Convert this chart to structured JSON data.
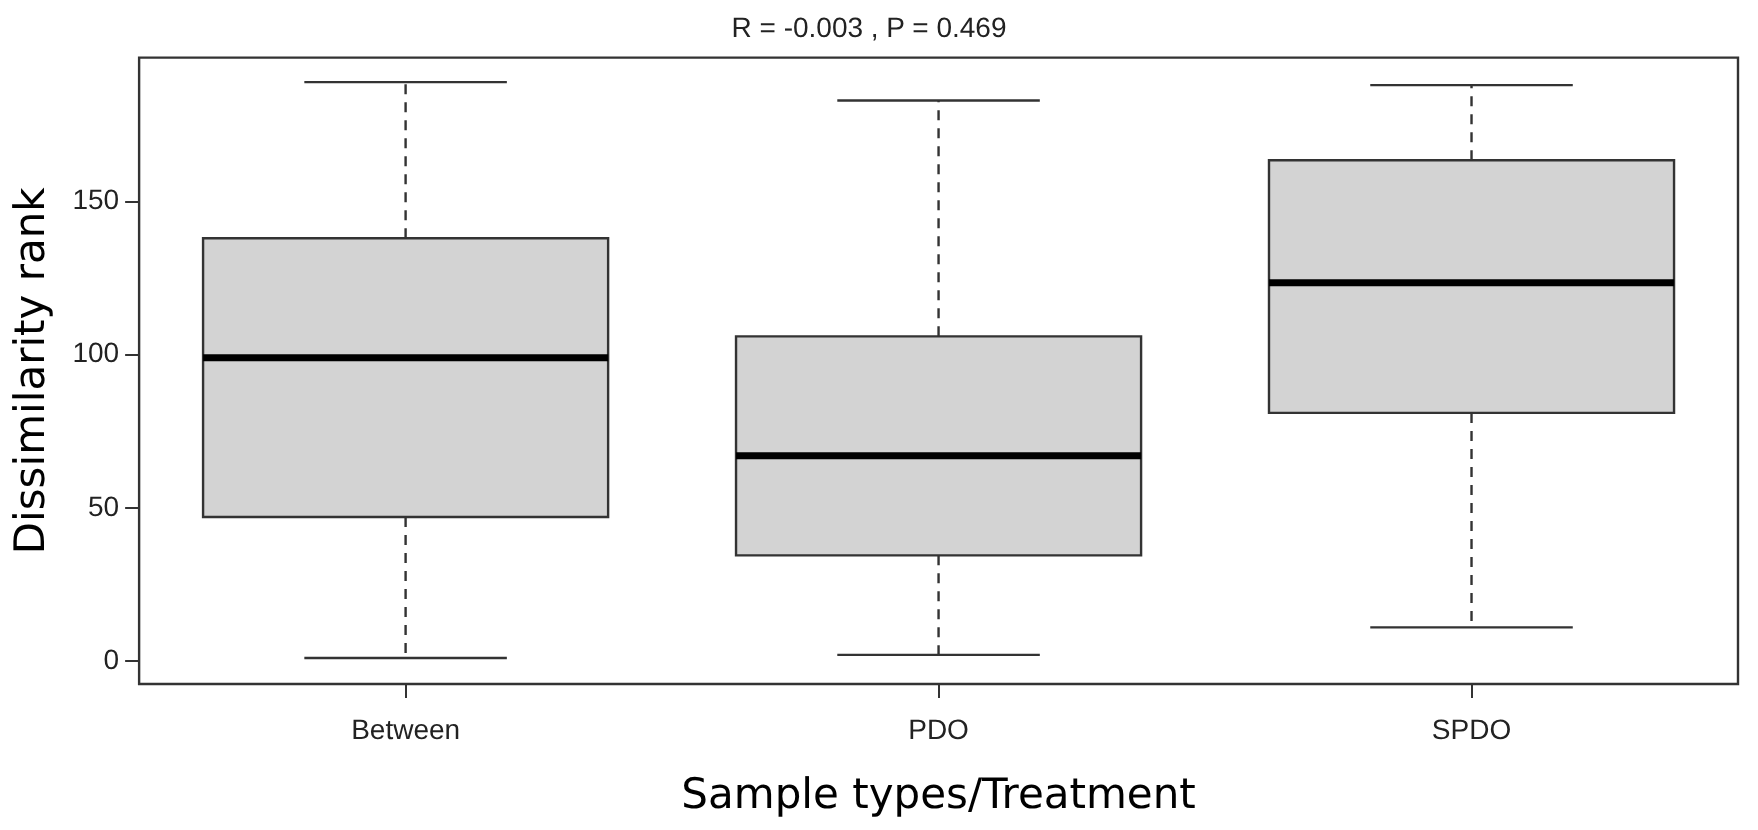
{
  "chart_data": {
    "type": "box",
    "title": "R = -0.003 , P = 0.469",
    "xlabel": "Sample types/Treatment",
    "ylabel": "Dissimilarity rank",
    "categories": [
      "Between",
      "PDO",
      "SPDO"
    ],
    "boxes": [
      {
        "low": 1,
        "q1": 47,
        "median": 99,
        "q3": 138,
        "high": 189
      },
      {
        "low": 2,
        "q1": 34.5,
        "median": 67,
        "q3": 106,
        "high": 183
      },
      {
        "low": 11,
        "q1": 81,
        "median": 123.5,
        "q3": 163.5,
        "high": 188
      }
    ],
    "color": "#d3d3d3",
    "ylim": [
      -7.5,
      197
    ],
    "yticks": [
      0,
      50,
      100,
      150
    ],
    "grid": false,
    "legend": false
  }
}
